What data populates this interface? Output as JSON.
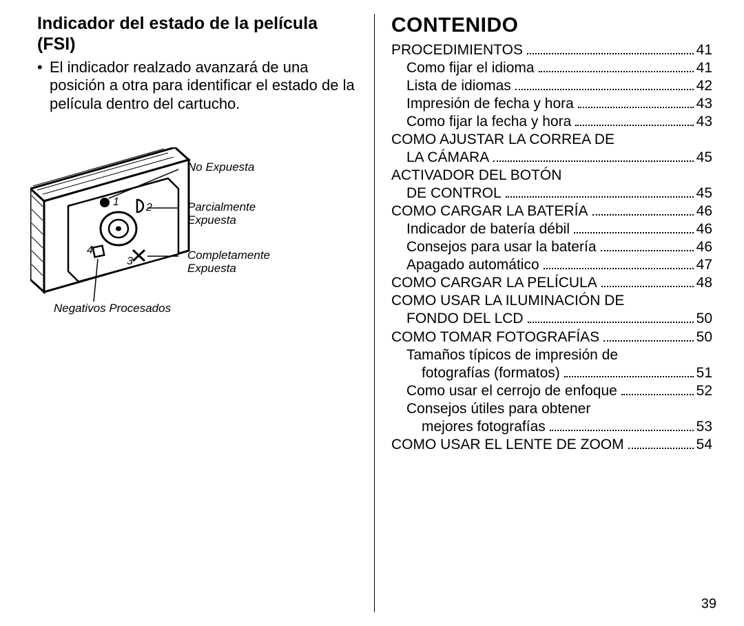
{
  "colors": {
    "text": "#000000",
    "background": "#ffffff",
    "rule": "#000000"
  },
  "left": {
    "title_line1": "Indicador del estado de la película",
    "title_line2": "(FSI)",
    "bullet_text": "El indicador realzado avanzará de una posición a otra para identificar el estado de la película dentro del cartucho.",
    "diagram": {
      "labels": {
        "no_expuesta": "No Expuesta",
        "parcialmente_l1": "Parcialmente",
        "parcialmente_l2": "Expuesta",
        "completamente_l1": "Completamente",
        "completamente_l2": "Expuesta",
        "negativos": "Negativos Procesados"
      },
      "indicator_numbers": [
        "1",
        "2",
        "3",
        "4"
      ]
    }
  },
  "right": {
    "title": "CONTENIDO",
    "toc": [
      {
        "label": "PROCEDIMIENTOS",
        "page": "41",
        "indent": 0
      },
      {
        "label": "Como fijar el idioma",
        "page": "41",
        "indent": 1
      },
      {
        "label": "Lista de idiomas",
        "page": "42",
        "indent": 1
      },
      {
        "label": "Impresión de fecha y hora",
        "page": "43",
        "indent": 1
      },
      {
        "label": "Como fijar la fecha y hora",
        "page": "43",
        "indent": 1
      },
      {
        "label_pre": "COMO AJUSTAR LA CORREA DE",
        "label": "LA CÁMARA",
        "page": "45",
        "indent": 0,
        "cont_indent": 1
      },
      {
        "label_pre": "ACTIVADOR DEL BOTÓN",
        "label": "DE CONTROL",
        "page": "45",
        "indent": 0,
        "cont_indent": 1
      },
      {
        "label": "COMO CARGAR LA BATERÍA",
        "page": "46",
        "indent": 0
      },
      {
        "label": "Indicador de batería débil",
        "page": "46",
        "indent": 1
      },
      {
        "label": "Consejos para usar la batería",
        "page": "46",
        "indent": 1
      },
      {
        "label": "Apagado automático",
        "page": "47",
        "indent": 1
      },
      {
        "label": "COMO CARGAR LA PELÍCULA",
        "page": "48",
        "indent": 0
      },
      {
        "label_pre": "COMO USAR LA ILUMINACIÓN DE",
        "label": "FONDO DEL LCD",
        "page": "50",
        "indent": 0,
        "cont_indent": 1
      },
      {
        "label": "COMO TOMAR FOTOGRAFÍAS",
        "page": "50",
        "indent": 0
      },
      {
        "label_pre": "Tamaños típicos de impresión de",
        "label": "fotografías (formatos)",
        "page": "51",
        "indent": 1,
        "cont_indent": 2
      },
      {
        "label": "Como usar el cerrojo de enfoque",
        "page": "52",
        "indent": 1
      },
      {
        "label_pre": "Consejos útiles para obtener",
        "label": "mejores fotografías",
        "page": "53",
        "indent": 1,
        "cont_indent": 2
      },
      {
        "label": "COMO USAR EL LENTE DE ZOOM",
        "page": "54",
        "indent": 0
      }
    ]
  },
  "page_number": "39"
}
